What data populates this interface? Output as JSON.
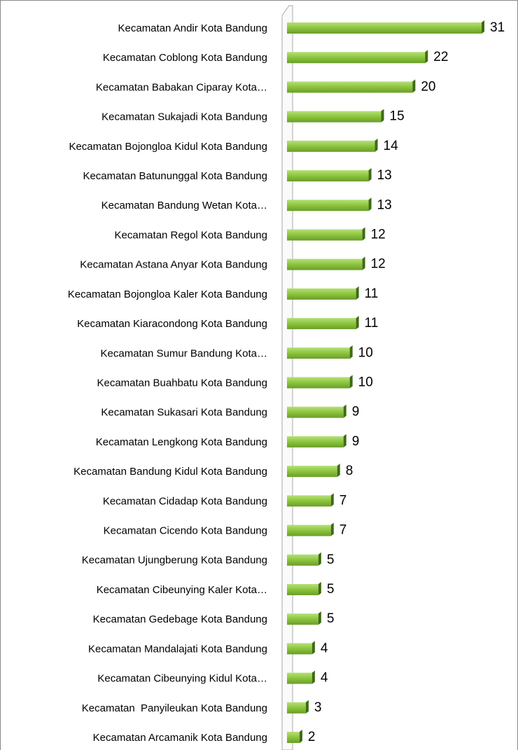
{
  "chart_data": {
    "type": "bar",
    "orientation": "horizontal",
    "color": "#8cc43c",
    "categories": [
      "Kecamatan Andir Kota Bandung",
      "Kecamatan Coblong Kota Bandung",
      "Kecamatan Babakan Ciparay Kota…",
      "Kecamatan Sukajadi Kota Bandung",
      "Kecamatan Bojongloa Kidul Kota Bandung",
      "Kecamatan Batununggal Kota Bandung",
      "Kecamatan Bandung Wetan Kota…",
      "Kecamatan Regol Kota Bandung",
      "Kecamatan Astana Anyar Kota Bandung",
      "Kecamatan Bojongloa Kaler Kota Bandung",
      "Kecamatan Kiaracondong Kota Bandung",
      "Kecamatan Sumur Bandung Kota…",
      "Kecamatan Buahbatu Kota Bandung",
      "Kecamatan Sukasari Kota Bandung",
      "Kecamatan Lengkong Kota Bandung",
      "Kecamatan Bandung Kidul Kota Bandung",
      "Kecamatan Cidadap Kota Bandung",
      "Kecamatan Cicendo Kota Bandung",
      "Kecamatan Ujungberung Kota Bandung",
      "Kecamatan Cibeunying Kaler Kota…",
      "Kecamatan Gedebage Kota Bandung",
      "Kecamatan Mandalajati Kota Bandung",
      "Kecamatan Cibeunying Kidul Kota…",
      "Kecamatan  Panyileukan Kota Bandung",
      "Kecamatan Arcamanik Kota Bandung"
    ],
    "values": [
      31,
      22,
      20,
      15,
      14,
      13,
      13,
      12,
      12,
      11,
      11,
      10,
      10,
      9,
      9,
      8,
      7,
      7,
      5,
      5,
      5,
      4,
      4,
      3,
      2
    ]
  }
}
